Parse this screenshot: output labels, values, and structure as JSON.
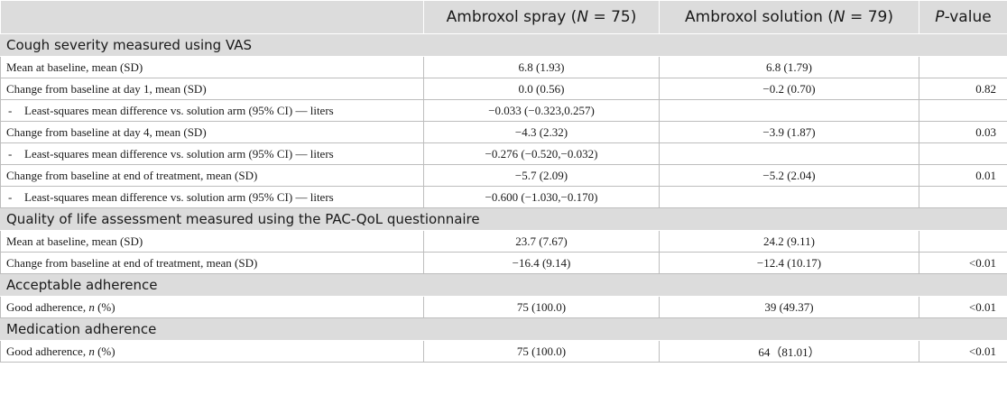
{
  "header": {
    "col1": "",
    "col2_prefix": "Ambroxol spray (",
    "col2_n": "N",
    "col2_suffix": " = 75)",
    "col3_prefix": "Ambroxol solution (",
    "col3_n": "N",
    "col3_suffix": " = 79)",
    "col4_p": "P",
    "col4_suffix": "-value"
  },
  "sections": {
    "vas": {
      "title": "Cough severity measured using VAS",
      "r1": {
        "label": "Mean at baseline, mean (SD)",
        "spray": "6.8 (1.93)",
        "solution": "6.8 (1.79)",
        "p": ""
      },
      "r2": {
        "label": "Change from baseline at day 1, mean (SD)",
        "spray": "0.0 (0.56)",
        "solution": "−0.2 (0.70)",
        "p": "0.82"
      },
      "r3": {
        "dash": "-",
        "label": "Least-squares mean difference vs. solution arm (95% CI) — liters",
        "spray": "−0.033 (−0.323,0.257)",
        "solution": "",
        "p": ""
      },
      "r4": {
        "label": "Change from baseline at day 4, mean (SD)",
        "spray": "−4.3 (2.32)",
        "solution": "−3.9 (1.87)",
        "p": "0.03"
      },
      "r5": {
        "dash": "-",
        "label": "Least-squares mean difference vs. solution arm (95% CI) — liters",
        "spray": "−0.276 (−0.520,−0.032)",
        "solution": "",
        "p": ""
      },
      "r6": {
        "label": "Change from baseline at end of treatment, mean (SD)",
        "spray": "−5.7 (2.09)",
        "solution": "−5.2 (2.04)",
        "p": "0.01"
      },
      "r7": {
        "dash": "-",
        "label": "Least-squares mean difference vs. solution arm (95% CI) — liters",
        "spray": "−0.600 (−1.030,−0.170)",
        "solution": "",
        "p": ""
      }
    },
    "qol": {
      "title": "Quality of life assessment measured using the PAC-QoL questionnaire",
      "r1": {
        "label": "Mean at baseline, mean (SD)",
        "spray": "23.7 (7.67)",
        "solution": "24.2 (9.11)",
        "p": ""
      },
      "r2": {
        "label": "Change from baseline at end of treatment, mean (SD)",
        "spray": "−16.4 (9.14)",
        "solution": "−12.4 (10.17)",
        "p": "<0.01"
      }
    },
    "acceptable": {
      "title": "Acceptable adherence",
      "r1": {
        "label_prefix": "Good adherence, ",
        "label_n": "n",
        "label_suffix": " (%)",
        "spray": "75 (100.0)",
        "solution": "39 (49.37)",
        "p": "<0.01"
      }
    },
    "medication": {
      "title": "Medication adherence",
      "r1": {
        "label_prefix": "Good adherence, ",
        "label_n": "n",
        "label_suffix": " (%)",
        "spray": "75 (100.0)",
        "solution": "64（81.01）",
        "p": "<0.01"
      }
    }
  }
}
